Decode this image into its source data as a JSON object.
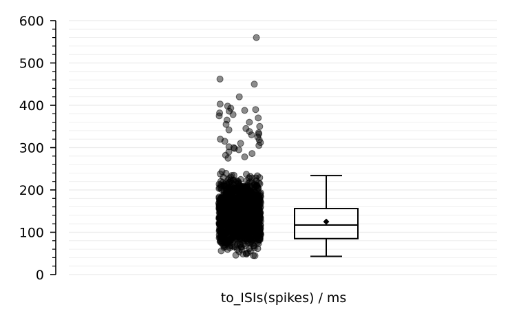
{
  "chart_data": {
    "type": "strip-box",
    "xlabel": "to_ISIs(spikes) / ms",
    "ylim": [
      0,
      600
    ],
    "yticks": [
      0,
      100,
      200,
      300,
      400,
      500,
      600
    ],
    "yticks_minor_step": 20,
    "grid": true,
    "box": {
      "whisker_low": 43,
      "q1": 85,
      "median": 117,
      "q3": 156,
      "whisker_high": 234,
      "mean": 125
    },
    "outliers": [
      560,
      462,
      450,
      420,
      403,
      398,
      393,
      390,
      388,
      386,
      382,
      378,
      375,
      370,
      365,
      360,
      355,
      350,
      345,
      342,
      338,
      335,
      332,
      330,
      325,
      320,
      318,
      315,
      312,
      310,
      305,
      302,
      300,
      298,
      295,
      290,
      286,
      282,
      278,
      275
    ],
    "scatter_range": [
      14,
      272
    ],
    "colors": {
      "points": "#000000",
      "box": "#000000",
      "grid": "#ebebeb"
    }
  }
}
